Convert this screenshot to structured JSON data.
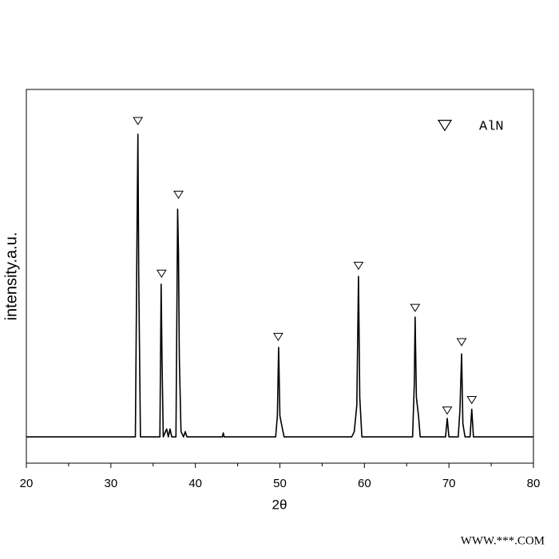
{
  "chart_data": {
    "type": "line",
    "x_label": "2θ",
    "y_label": "intensity.a.u.",
    "xlim": [
      20,
      80
    ],
    "ylim": [
      -10,
      132
    ],
    "xticks": [
      20,
      30,
      40,
      50,
      60,
      70,
      80
    ],
    "xminor_ticks": [
      25,
      35,
      45,
      55,
      65,
      75
    ],
    "x": [
      20,
      32.9,
      33.1,
      33.2,
      33.3,
      33.5,
      35.8,
      35.95,
      36.05,
      36.2,
      36.6,
      36.8,
      37.0,
      37.2,
      37.7,
      37.9,
      38.0,
      38.1,
      38.3,
      38.6,
      38.8,
      39.0,
      43.2,
      43.3,
      43.4,
      49.5,
      49.7,
      49.85,
      50.0,
      50.3,
      50.5,
      58.5,
      58.8,
      59.1,
      59.3,
      59.45,
      59.7,
      65.7,
      65.9,
      66.0,
      66.15,
      66.4,
      66.6,
      69.6,
      69.8,
      70.0,
      71.1,
      71.3,
      71.5,
      71.65,
      71.9,
      72.5,
      72.7,
      72.9,
      80
    ],
    "series": [
      {
        "color": "#000000",
        "values": [
          0,
          0,
          80,
          115,
          60,
          0,
          0,
          58,
          30,
          0,
          3,
          0,
          3,
          0,
          0,
          86.5,
          70,
          30,
          2,
          0,
          2,
          0,
          0,
          1.5,
          0,
          0,
          8,
          34,
          8,
          3,
          0,
          0,
          2,
          12,
          61,
          15,
          0,
          0,
          20,
          45.5,
          15,
          8,
          0,
          0,
          7,
          0,
          0,
          10,
          31.5,
          5,
          0,
          0,
          10.5,
          0,
          0
        ]
      }
    ],
    "markers": {
      "name": "AlN",
      "color": "#000000",
      "x": [
        33.2,
        36.0,
        38.0,
        49.8,
        59.3,
        66.0,
        69.8,
        71.5,
        72.7
      ],
      "values": [
        120,
        62,
        92,
        38,
        65,
        49,
        10,
        36,
        14
      ]
    },
    "legend": "upper right",
    "watermark": "WWW.***.COM"
  }
}
